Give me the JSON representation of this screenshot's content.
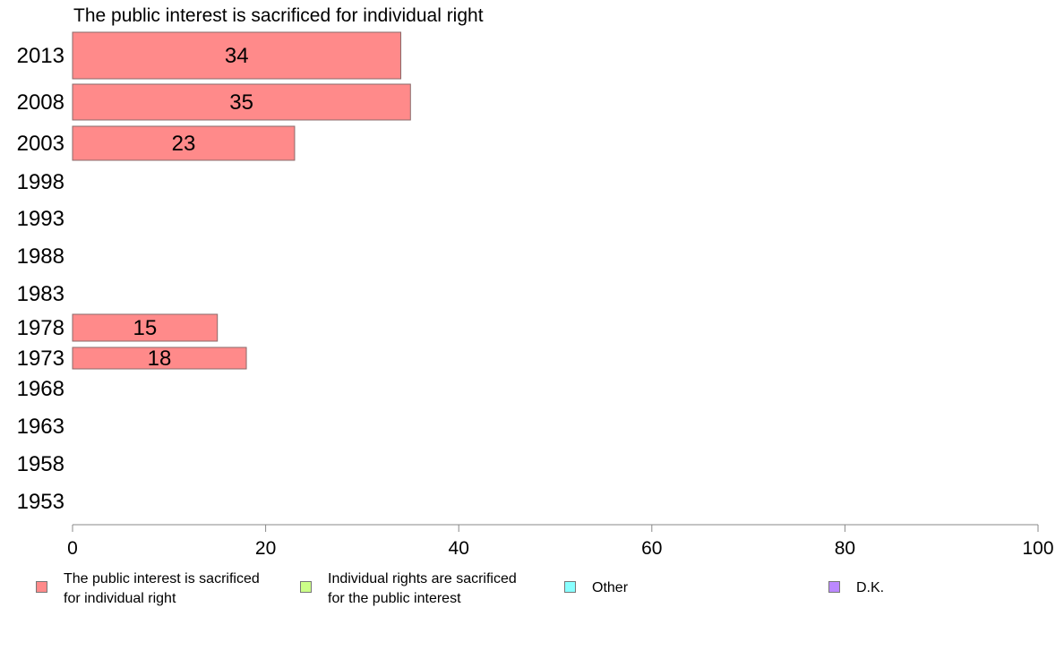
{
  "chart_data": {
    "type": "bar",
    "orientation": "horizontal",
    "title": "The public interest is sacrificed for individual right",
    "categories": [
      "2013",
      "2008",
      "2003",
      "1998",
      "1993",
      "1988",
      "1983",
      "1978",
      "1973",
      "1968",
      "1963",
      "1958",
      "1953"
    ],
    "series": [
      {
        "name": "The public interest is sacrificed for individual right",
        "color": "#ff8a8a",
        "values": [
          34,
          35,
          23,
          null,
          null,
          null,
          null,
          15,
          18,
          null,
          null,
          null,
          null
        ]
      }
    ],
    "xlim": [
      0,
      100
    ],
    "xticks": [
      "0",
      "20",
      "40",
      "60",
      "80",
      "100"
    ],
    "xlabel": "",
    "ylabel": "",
    "grid": false,
    "legend_position": "bottom"
  },
  "legend": [
    {
      "line1": "The public interest is sacrificed",
      "line2": "for individual right",
      "color": "#ff8a8a"
    },
    {
      "line1": "Individual rights are sacrificed",
      "line2": "for the public interest",
      "color": "#ccff88"
    },
    {
      "line1": "Other",
      "line2": "",
      "color": "#88ffff"
    },
    {
      "line1": "D.K.",
      "line2": "",
      "color": "#bb88ff"
    }
  ]
}
